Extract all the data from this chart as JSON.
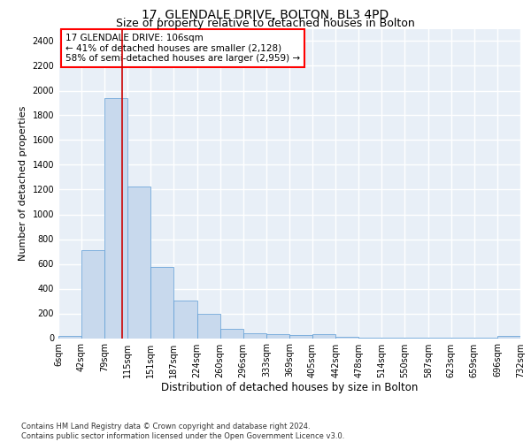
{
  "title": "17, GLENDALE DRIVE, BOLTON, BL3 4PD",
  "subtitle": "Size of property relative to detached houses in Bolton",
  "xlabel": "Distribution of detached houses by size in Bolton",
  "ylabel": "Number of detached properties",
  "bar_color": "#c8d9ed",
  "bar_edge_color": "#5b9bd5",
  "background_color": "#e8eff7",
  "grid_color": "#ffffff",
  "annotation_text": "17 GLENDALE DRIVE: 106sqm\n← 41% of detached houses are smaller (2,128)\n58% of semi-detached houses are larger (2,959) →",
  "vline_x": 106,
  "vline_color": "#cc0000",
  "footnote": "Contains HM Land Registry data © Crown copyright and database right 2024.\nContains public sector information licensed under the Open Government Licence v3.0.",
  "bin_edges": [
    6,
    42,
    79,
    115,
    151,
    187,
    224,
    260,
    296,
    333,
    369,
    405,
    442,
    478,
    514,
    550,
    587,
    623,
    659,
    696,
    732
  ],
  "bar_heights": [
    15,
    710,
    1940,
    1225,
    575,
    305,
    200,
    75,
    40,
    30,
    27,
    30,
    10,
    5,
    5,
    3,
    2,
    2,
    2,
    15
  ],
  "tick_labels": [
    "6sqm",
    "42sqm",
    "79sqm",
    "115sqm",
    "151sqm",
    "187sqm",
    "224sqm",
    "260sqm",
    "296sqm",
    "333sqm",
    "369sqm",
    "405sqm",
    "442sqm",
    "478sqm",
    "514sqm",
    "550sqm",
    "587sqm",
    "623sqm",
    "659sqm",
    "696sqm",
    "732sqm"
  ],
  "ylim": [
    0,
    2500
  ],
  "yticks": [
    0,
    200,
    400,
    600,
    800,
    1000,
    1200,
    1400,
    1600,
    1800,
    2000,
    2200,
    2400
  ],
  "title_fontsize": 10,
  "subtitle_fontsize": 9,
  "xlabel_fontsize": 8.5,
  "ylabel_fontsize": 8,
  "tick_fontsize": 7,
  "annotation_fontsize": 7.5,
  "footnote_fontsize": 6
}
